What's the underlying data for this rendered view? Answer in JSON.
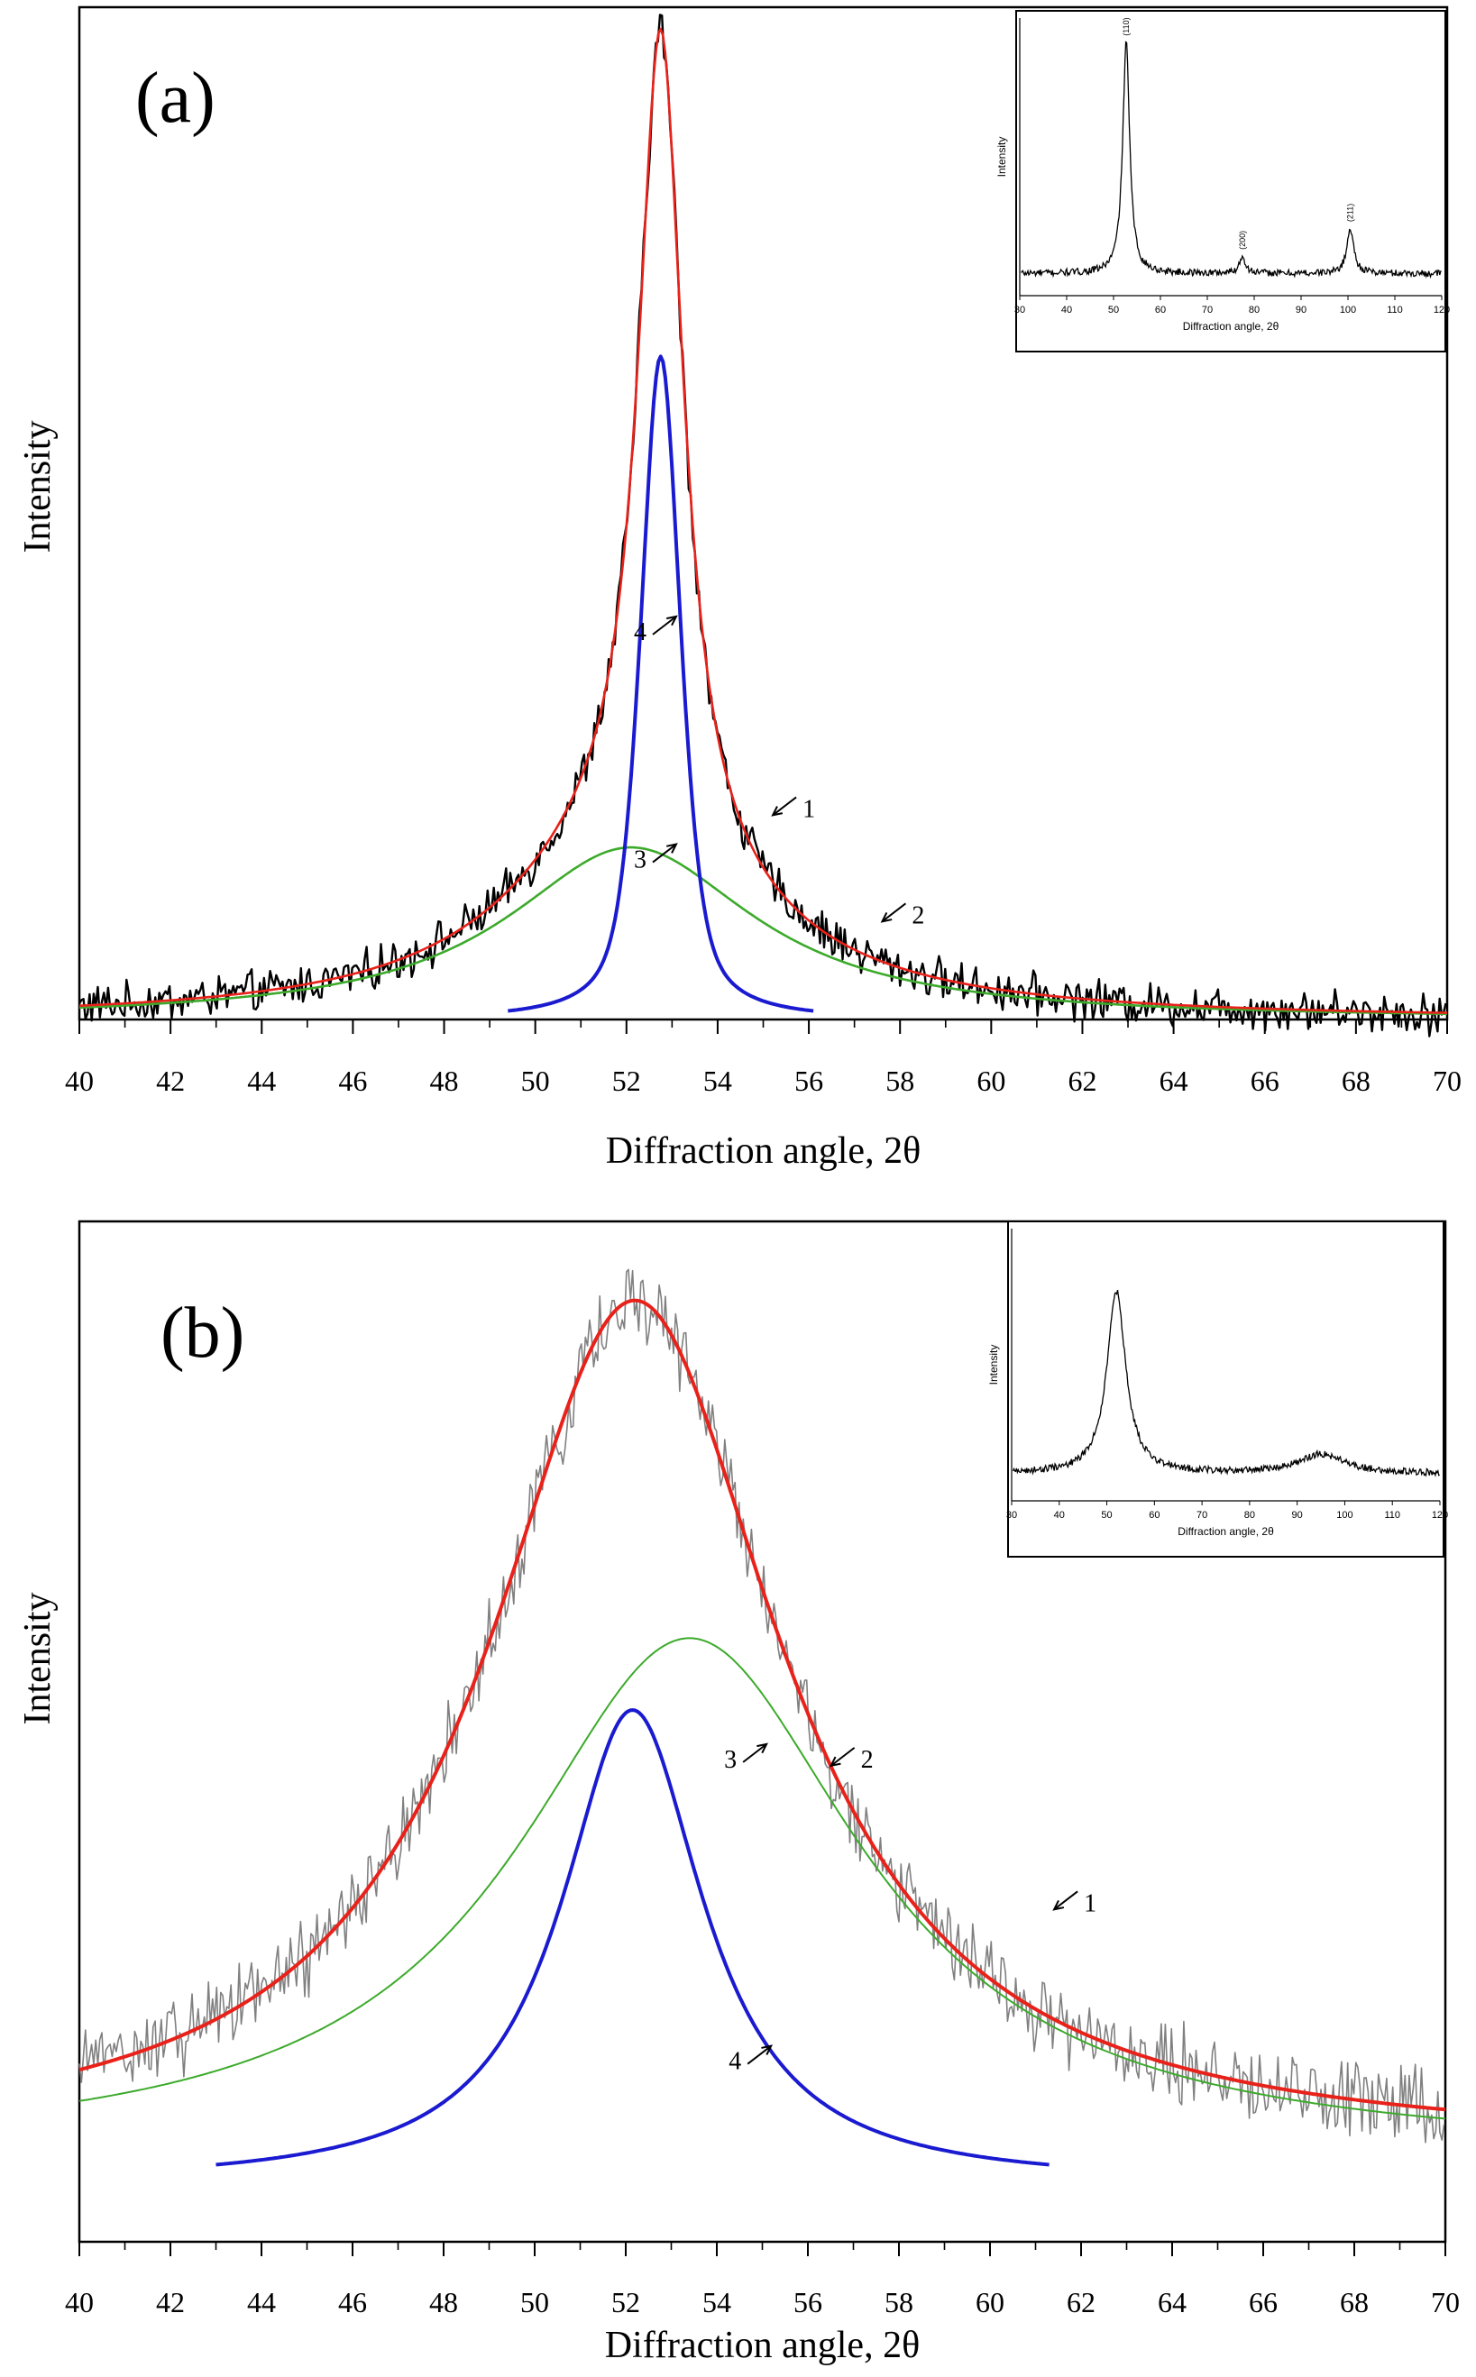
{
  "chart_data": [
    {
      "type": "line",
      "panel_label": "(a)",
      "xlabel": "Diffraction angle, 2θ",
      "ylabel": "Intensity",
      "xlim": [
        40,
        70
      ],
      "xticks": [
        40,
        42,
        44,
        46,
        48,
        50,
        52,
        54,
        56,
        58,
        60,
        62,
        64,
        66,
        68,
        70
      ],
      "y_ticks_labeled": false,
      "series": [
        {
          "name": "1",
          "color": "#000000",
          "kind": "measured",
          "peaks": [
            {
              "center": 52.75,
              "height": 0.815,
              "hwhm": 0.6,
              "shape": "lorentz"
            },
            {
              "center": 52.1,
              "height": 0.17,
              "hwhm": 3.3,
              "shape": "lorentz"
            }
          ],
          "noise": 0.016,
          "x_range": [
            40,
            70
          ]
        },
        {
          "name": "2",
          "color": "#e8221a",
          "kind": "fit-sum",
          "peaks": [
            {
              "center": 52.75,
              "height": 0.815,
              "hwhm": 0.6,
              "shape": "lorentz"
            },
            {
              "center": 52.1,
              "height": 0.17,
              "hwhm": 3.3,
              "shape": "lorentz"
            }
          ],
          "x_range": [
            40,
            70
          ]
        },
        {
          "name": "3",
          "color": "#3daa2c",
          "kind": "component",
          "peaks": [
            {
              "center": 52.1,
              "height": 0.17,
              "hwhm": 3.3,
              "shape": "lorentz"
            }
          ],
          "x_range": [
            40,
            70
          ]
        },
        {
          "name": "4",
          "color": "#1a1ad0",
          "kind": "component",
          "peaks": [
            {
              "center": 52.75,
              "height": 0.655,
              "hwhm": 0.52,
              "shape": "pseudo-voigt"
            }
          ],
          "x_range": [
            49.4,
            56.1
          ]
        }
      ],
      "annotations": [
        {
          "text": "1",
          "x": 56.0,
          "y": 0.2
        },
        {
          "text": "2",
          "x": 58.4,
          "y": 0.095
        },
        {
          "text": "3",
          "x": 52.3,
          "y": 0.15
        },
        {
          "text": "4",
          "x": 52.3,
          "y": 0.375
        }
      ],
      "inset": {
        "xlabel": "Diffraction angle, 2θ",
        "ylabel": "Intensity",
        "xlim": [
          30,
          120
        ],
        "xticks": [
          30,
          40,
          50,
          60,
          70,
          80,
          90,
          100,
          110,
          120
        ],
        "peak_labels": [
          {
            "text": "(110)",
            "x": 52.7
          },
          {
            "text": "(200)",
            "x": 77.5
          },
          {
            "text": "(211)",
            "x": 100.5
          }
        ],
        "peaks": [
          {
            "center": 52.7,
            "height": 0.83,
            "hwhm": 0.9
          },
          {
            "center": 77.5,
            "height": 0.06,
            "hwhm": 0.8
          },
          {
            "center": 100.5,
            "height": 0.16,
            "hwhm": 0.9
          }
        ],
        "baseline": 0.08
      }
    },
    {
      "type": "line",
      "panel_label": "(b)",
      "xlabel": "Diffraction angle, 2θ",
      "ylabel": "Intensity",
      "xlim": [
        40,
        70
      ],
      "xticks": [
        40,
        42,
        44,
        46,
        48,
        50,
        52,
        54,
        56,
        58,
        60,
        62,
        64,
        66,
        68,
        70
      ],
      "y_ticks_labeled": false,
      "series": [
        {
          "name": "1",
          "color": "#808080",
          "kind": "measured",
          "peaks": [
            {
              "center": 52.2,
              "height": 0.59,
              "hwhm": 3.9,
              "shape": "lorentz"
            }
          ],
          "baseline": 0.025,
          "noise": 0.022,
          "x_range": [
            40,
            70
          ]
        },
        {
          "name": "2",
          "color": "#e8221a",
          "kind": "fit-sum",
          "peaks": [
            {
              "center": 52.2,
              "height": 0.59,
              "hwhm": 3.9,
              "shape": "lorentz"
            }
          ],
          "baseline": 0.025,
          "x_range": [
            40,
            70
          ]
        },
        {
          "name": "3",
          "color": "#3daa2c",
          "kind": "component",
          "peaks": [
            {
              "center": 53.4,
              "height": 0.36,
              "hwhm": 4.6,
              "shape": "lorentz"
            }
          ],
          "baseline": 0.02,
          "x_range": [
            40,
            70
          ]
        },
        {
          "name": "4",
          "color": "#1a1ad0",
          "kind": "component",
          "peaks": [
            {
              "center": 52.15,
              "height": 0.33,
              "hwhm": 1.9,
              "shape": "lorentz"
            }
          ],
          "x_range": [
            43,
            61.3
          ]
        }
      ],
      "annotations": [
        {
          "text": "1",
          "x": 62.2,
          "y": 0.19
        },
        {
          "text": "2",
          "x": 57.3,
          "y": 0.29
        },
        {
          "text": "3",
          "x": 54.3,
          "y": 0.29
        },
        {
          "text": "4",
          "x": 54.4,
          "y": 0.08
        }
      ],
      "inset": {
        "xlabel": "Diffraction angle, 2θ",
        "ylabel": "Intensity",
        "xlim": [
          30,
          120
        ],
        "xticks": [
          30,
          40,
          50,
          60,
          70,
          80,
          90,
          100,
          110,
          120
        ],
        "peak_labels": [],
        "peaks": [
          {
            "center": 52.0,
            "height": 0.67,
            "hwhm": 2.4
          },
          {
            "center": 95.0,
            "height": 0.07,
            "hwhm": 6.0
          }
        ],
        "baseline": 0.1
      }
    }
  ]
}
